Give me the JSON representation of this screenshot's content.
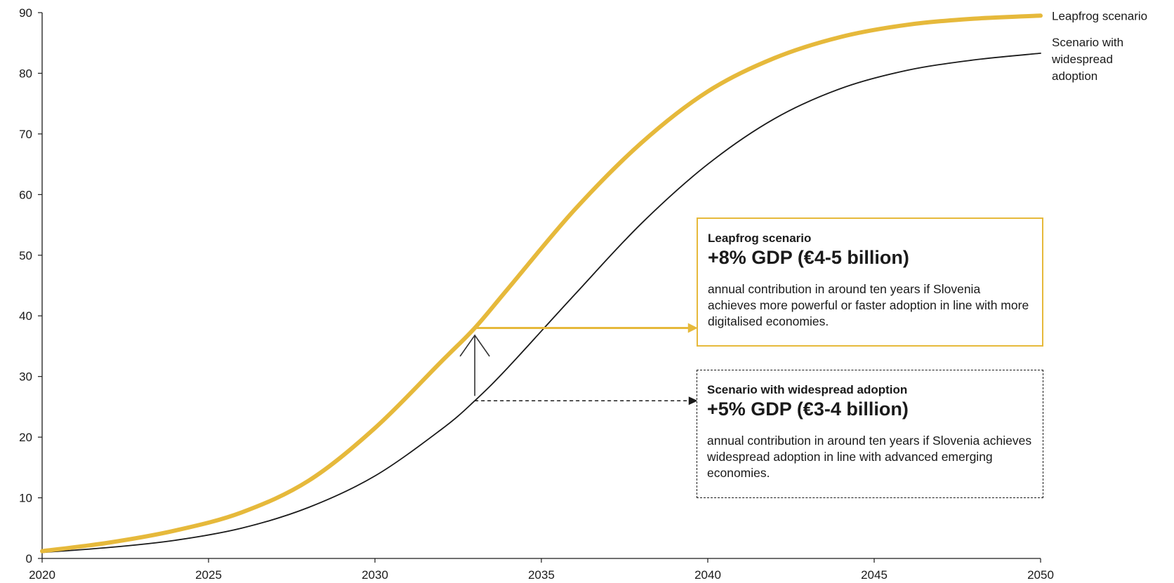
{
  "chart_data": {
    "type": "line",
    "title": "",
    "xlabel": "",
    "ylabel": "",
    "xlim": [
      2020,
      2050
    ],
    "ylim": [
      0,
      90
    ],
    "x_ticks": [
      "2020",
      "2025",
      "2030",
      "2035",
      "2040",
      "2045",
      "2050"
    ],
    "y_ticks": [
      "0",
      "10",
      "20",
      "30",
      "40",
      "50",
      "60",
      "70",
      "80",
      "90"
    ],
    "grid": false,
    "x": [
      2020,
      2022,
      2024,
      2026,
      2028,
      2030,
      2032,
      2033,
      2034,
      2036,
      2038,
      2040,
      2042,
      2044,
      2046,
      2048,
      2050
    ],
    "series": [
      {
        "name": "Leapfrog scenario",
        "color": "#e6b93b",
        "values": [
          1.2,
          2.6,
          4.6,
          7.6,
          12.8,
          21.5,
          32.5,
          38.0,
          44.5,
          57.5,
          68.5,
          77.0,
          82.5,
          86.0,
          88.0,
          89.0,
          89.5
        ]
      },
      {
        "name": "Scenario with widespread adoption",
        "color": "#1a1a1a",
        "values": [
          1.0,
          1.8,
          3.0,
          5.0,
          8.4,
          13.6,
          21.3,
          26.0,
          31.5,
          43.5,
          55.2,
          65.0,
          72.5,
          77.5,
          80.5,
          82.2,
          83.3
        ]
      }
    ],
    "annotations": {
      "upward_arrow": {
        "x": 2033,
        "from_y": 26.8,
        "to_y": 36.8
      },
      "leapfrog_arrow": {
        "x_from": 2033,
        "x_to": 2039.7,
        "y": 38.0
      },
      "widespread_arrow": {
        "x_from": 2033,
        "x_to": 2039.7,
        "y": 26.0
      }
    }
  },
  "callouts": {
    "leapfrog": {
      "title": "Leapfrog scenario",
      "headline": "+8% GDP (€4-5 billion)",
      "body": "annual contribution in around ten years if Slovenia achieves more powerful or faster adoption in line with more digitalised economies."
    },
    "widespread": {
      "title": "Scenario with widespread adoption",
      "headline": "+5% GDP (€3-4 billion)",
      "body": "annual contribution in around ten years if Slovenia achieves widespread adoption in line with advanced emerging economies."
    }
  },
  "series_labels": {
    "leapfrog": [
      "Leapfrog scenario"
    ],
    "widespread": [
      "Scenario with",
      "widespread",
      "adoption"
    ]
  }
}
